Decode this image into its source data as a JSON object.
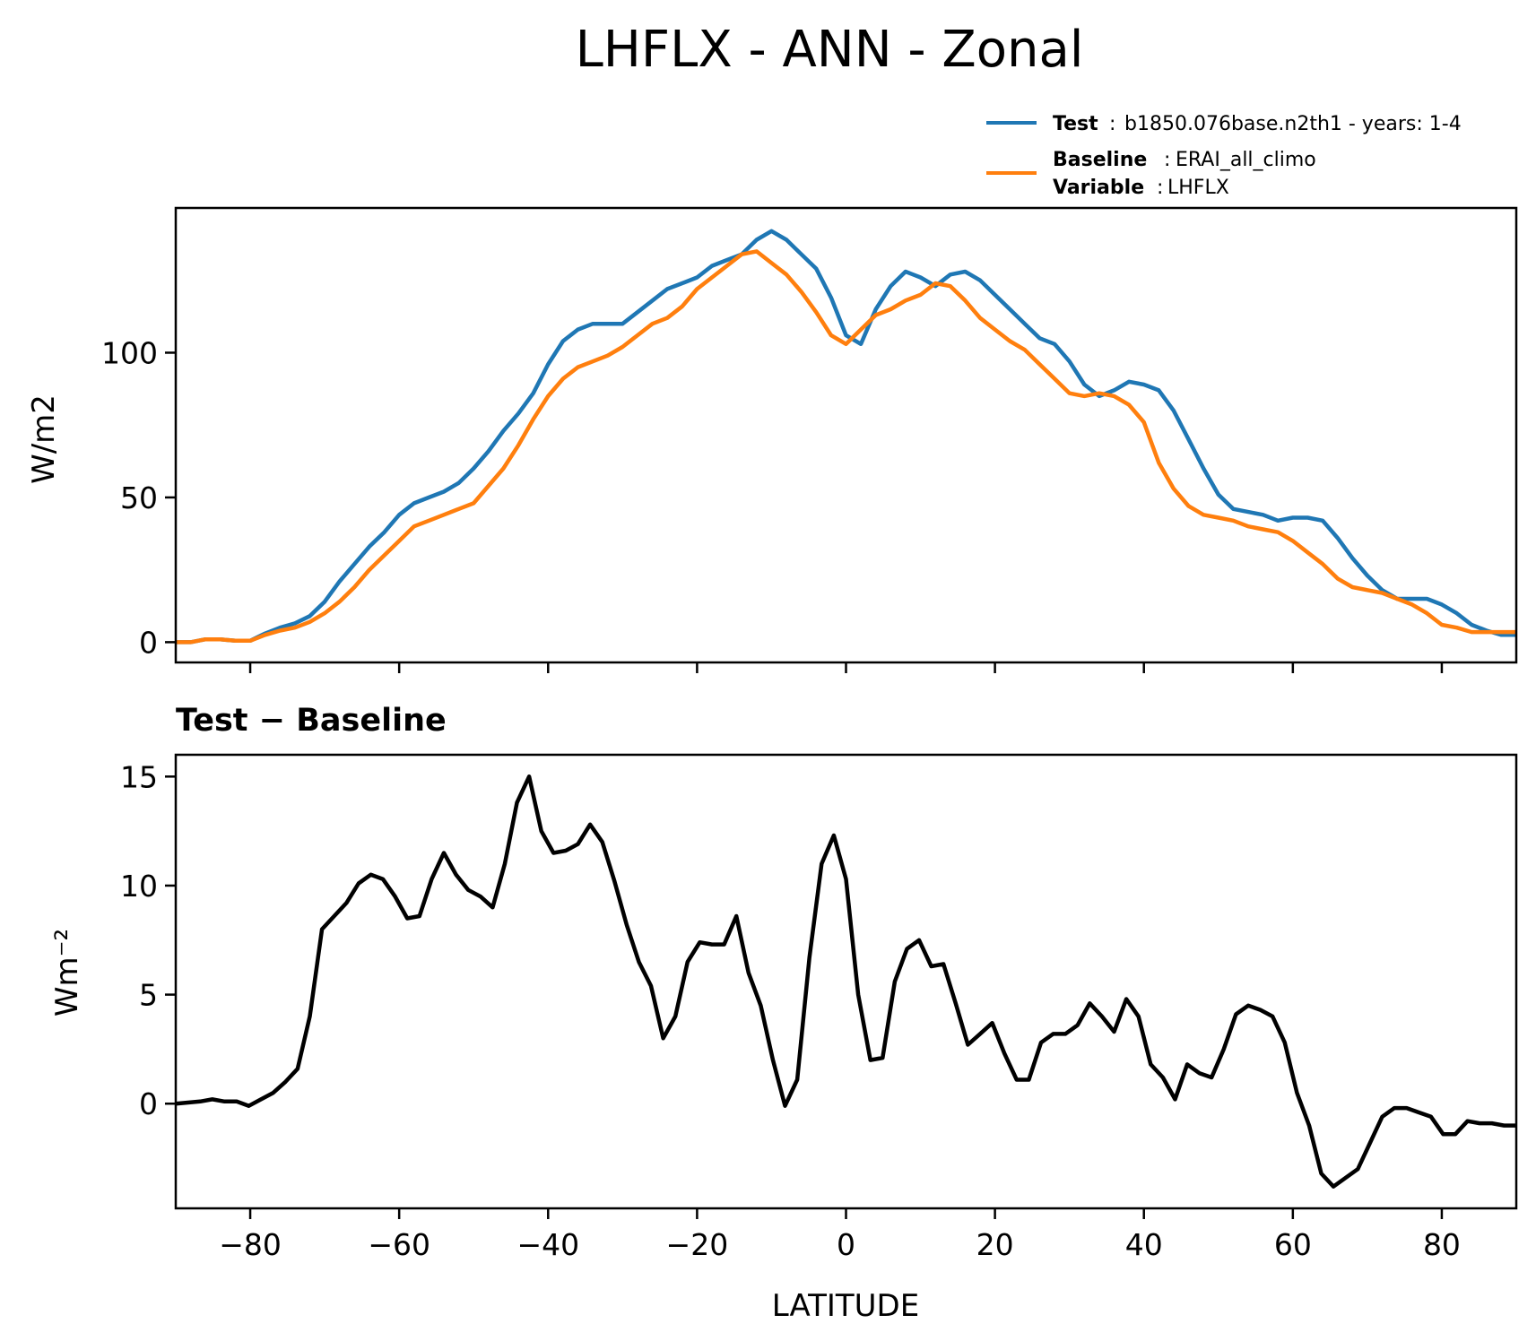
{
  "figure": {
    "title": "LHFLX - ANN - Zonal"
  },
  "legend": {
    "test_key": "Test",
    "test_value": "b1850.076base.n2th1 - years: 1-4",
    "baseline_key": "Baseline",
    "baseline_value": "ERAI_all_climo",
    "variable_key": "Variable",
    "variable_value": "LHFLX",
    "sep": ":",
    "colors": {
      "test": "#1f77b4",
      "baseline": "#ff7f0e",
      "diff": "#000000"
    }
  },
  "chart_data": [
    {
      "type": "line",
      "title": "",
      "xlabel": "",
      "ylabel": "W/m2",
      "xlim": [
        -90,
        90
      ],
      "ylim": [
        -7,
        150
      ],
      "xticks": [
        -80,
        -60,
        -40,
        -20,
        0,
        20,
        40,
        60,
        80
      ],
      "yticks": [
        0,
        50,
        100
      ],
      "ytick_labels": [
        "0",
        "50",
        "100"
      ],
      "grid": false,
      "legend_position": "top-right (above plot)",
      "x": [
        -90,
        -88,
        -86,
        -84,
        -82,
        -80,
        -78,
        -76,
        -74,
        -72,
        -70,
        -68,
        -66,
        -64,
        -62,
        -60,
        -58,
        -56,
        -54,
        -52,
        -50,
        -48,
        -46,
        -44,
        -42,
        -40,
        -38,
        -36,
        -34,
        -32,
        -30,
        -28,
        -26,
        -24,
        -22,
        -20,
        -18,
        -16,
        -14,
        -12,
        -10,
        -8,
        -6,
        -4,
        -2,
        0,
        2,
        4,
        6,
        8,
        10,
        12,
        14,
        16,
        18,
        20,
        22,
        24,
        26,
        28,
        30,
        32,
        34,
        36,
        38,
        40,
        42,
        44,
        46,
        48,
        50,
        52,
        54,
        56,
        58,
        60,
        62,
        64,
        66,
        68,
        70,
        72,
        74,
        76,
        78,
        80,
        82,
        84,
        86,
        88,
        90
      ],
      "series": [
        {
          "name": "Test",
          "color": "#1f77b4",
          "values": [
            0,
            0,
            1,
            1,
            0.5,
            0.5,
            3,
            5,
            6.5,
            9,
            14,
            21,
            27,
            33,
            38,
            44,
            48,
            50,
            52,
            55,
            60,
            66,
            73,
            79,
            86,
            96,
            104,
            108,
            110,
            110,
            110,
            114,
            118,
            122,
            124,
            126,
            130,
            132,
            134,
            139,
            142,
            139,
            134,
            129,
            119,
            106,
            103,
            115,
            123,
            128,
            126,
            123,
            127,
            128,
            125,
            120,
            115,
            110,
            105,
            103,
            97,
            89,
            85,
            87,
            90,
            89,
            87,
            80,
            70,
            60,
            51,
            46,
            45,
            44,
            42,
            43,
            43,
            42,
            36,
            29,
            23,
            18,
            15,
            15,
            15,
            13,
            10,
            6,
            4,
            2.5,
            2.5
          ]
        },
        {
          "name": "Baseline",
          "color": "#ff7f0e",
          "values": [
            0,
            0,
            1,
            1,
            0.5,
            0.5,
            2.5,
            4,
            5,
            7,
            10,
            14,
            19,
            25,
            30,
            35,
            40,
            42,
            44,
            46,
            48,
            54,
            60,
            68,
            77,
            85,
            91,
            95,
            97,
            99,
            102,
            106,
            110,
            112,
            116,
            122,
            126,
            130,
            134,
            135,
            131,
            127,
            121,
            114,
            106,
            103,
            108,
            113,
            115,
            118,
            120,
            124,
            123,
            118,
            112,
            108,
            104,
            101,
            96,
            91,
            86,
            85,
            86,
            85,
            82,
            76,
            62,
            53,
            47,
            44,
            43,
            42,
            40,
            39,
            38,
            35,
            31,
            27,
            22,
            19,
            18,
            17,
            15,
            13,
            10,
            6,
            5,
            3.5,
            3.5,
            3.5,
            3.5
          ]
        }
      ]
    },
    {
      "type": "line",
      "title": "Test − Baseline",
      "xlabel": "LATITUDE",
      "ylabel": "Wm⁻²",
      "xlim": [
        -90,
        90
      ],
      "ylim": [
        -4.8,
        16
      ],
      "xticks": [
        -80,
        -60,
        -40,
        -20,
        0,
        20,
        40,
        60,
        80
      ],
      "xtick_labels": [
        "−80",
        "−60",
        "−40",
        "−20",
        "0",
        "20",
        "40",
        "60",
        "80"
      ],
      "yticks": [
        0,
        5,
        10,
        15
      ],
      "ytick_labels": [
        "0",
        "5",
        "10",
        "15"
      ],
      "grid": false,
      "series": [
        {
          "name": "",
          "color": "#000000",
          "values": [
            0,
            0.05,
            0.1,
            0.2,
            0.1,
            0.1,
            -0.1,
            0.2,
            0.5,
            1.0,
            1.6,
            4.0,
            8.0,
            8.6,
            9.2,
            10.1,
            10.5,
            10.3,
            9.5,
            8.5,
            8.6,
            10.3,
            11.5,
            10.5,
            9.8,
            9.5,
            9.0,
            11.0,
            13.8,
            15.0,
            12.5,
            11.5,
            11.6,
            11.9,
            12.8,
            12.0,
            10.2,
            8.2,
            6.5,
            5.4,
            3.0,
            4.0,
            6.5,
            7.4,
            7.3,
            7.3,
            8.6,
            6.0,
            4.5,
            2.0,
            -0.1,
            1.1,
            6.7,
            11.0,
            12.3,
            10.3,
            5.0,
            2.0,
            2.1,
            5.6,
            7.1,
            7.5,
            6.3,
            6.4,
            4.6,
            2.7,
            3.2,
            3.7,
            2.3,
            1.1,
            1.1,
            2.8,
            3.2,
            3.2,
            3.6,
            4.6,
            4.0,
            3.3,
            4.8,
            4.0,
            1.8,
            1.2,
            0.2,
            1.8,
            1.4,
            1.2,
            2.5,
            4.1,
            4.5,
            4.3,
            4.0,
            2.8,
            0.5,
            -1.0,
            -3.2,
            -3.8,
            -3.4,
            -3.0,
            -1.8,
            -0.6,
            -0.2,
            -0.2,
            -0.4,
            -0.6,
            -1.4,
            -1.4,
            -0.8,
            -0.9,
            -0.9,
            -1.0,
            -1.0
          ]
        }
      ]
    }
  ]
}
